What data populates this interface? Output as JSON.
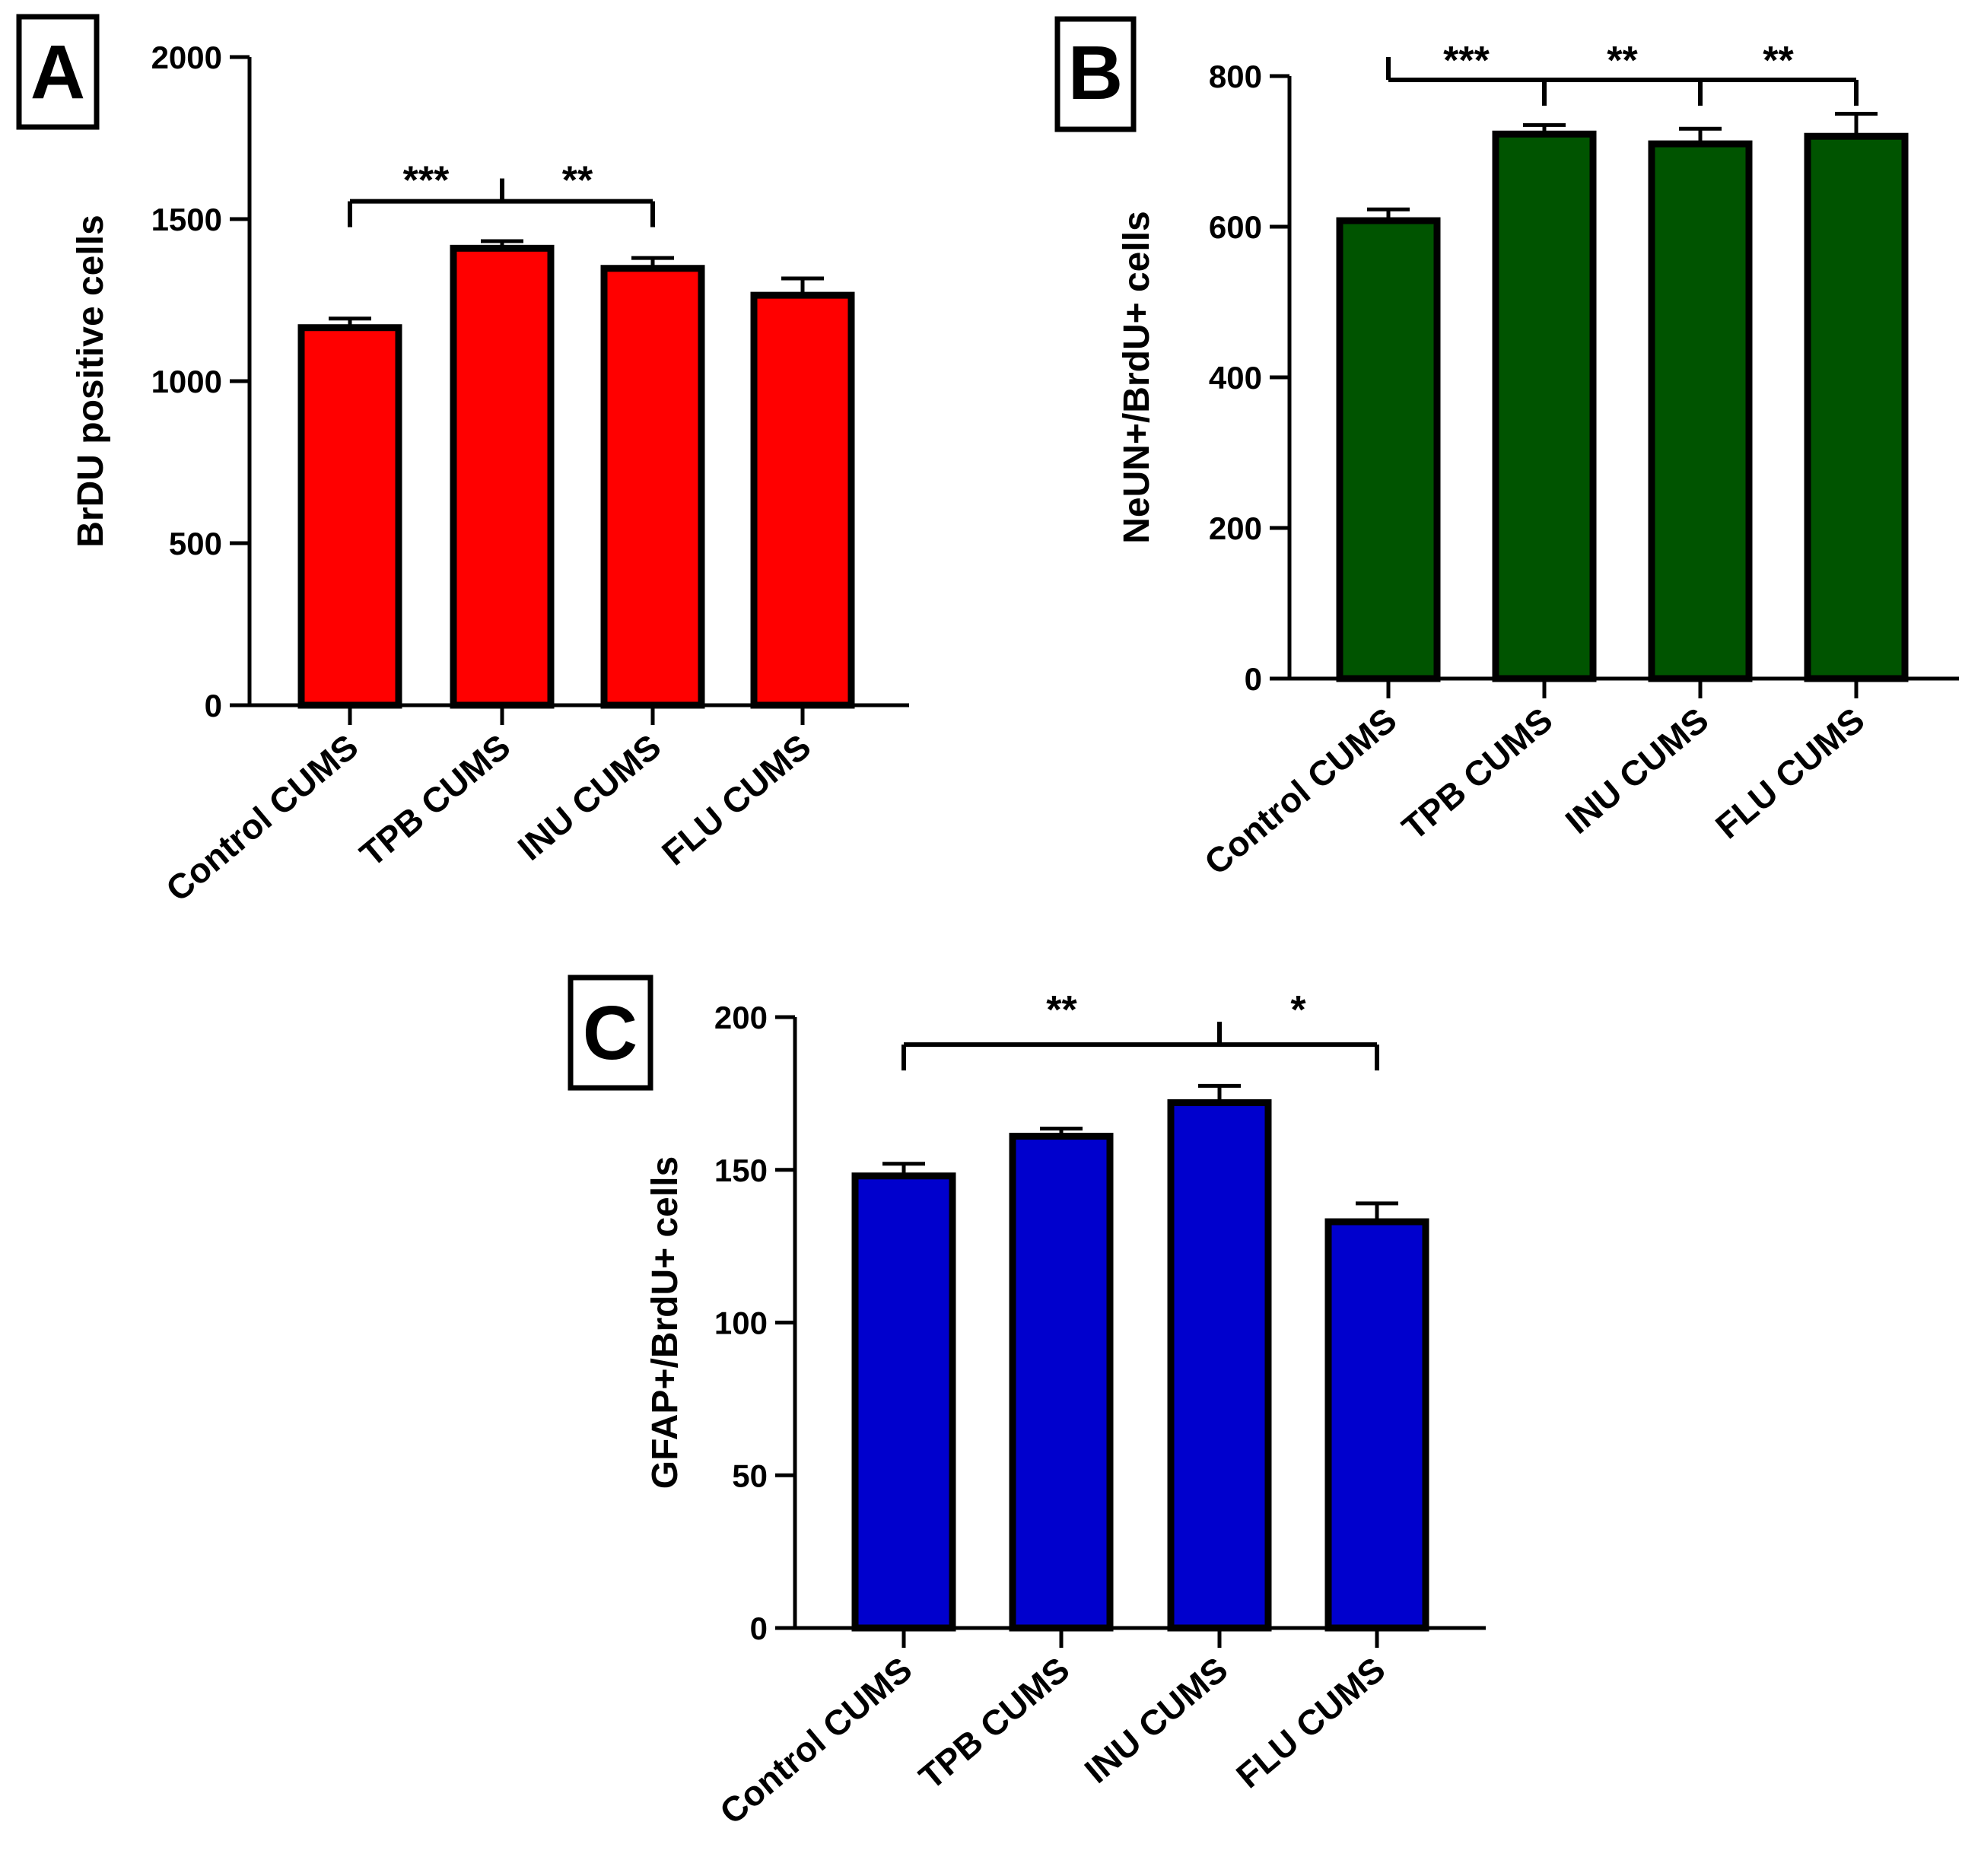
{
  "chart_data": [
    {
      "type": "bar",
      "panel_label": "A",
      "ylabel": "BrDU positive cells",
      "categories": [
        "Control CUMS",
        "TPB CUMS",
        "INU CUMS",
        "FLU CUMS"
      ],
      "values": [
        1165,
        1410,
        1348,
        1265
      ],
      "errors": [
        28,
        22,
        32,
        52
      ],
      "ylim": [
        0,
        2000
      ],
      "yticks": [
        0,
        500,
        1000,
        1500,
        2000
      ],
      "color": "#ff0000",
      "significance": {
        "stem": 1,
        "value": 1555,
        "targets": [
          0,
          2
        ],
        "labels": [
          {
            "text": "***",
            "between": [
              0,
              1
            ]
          },
          {
            "text": "**",
            "between": [
              1,
              2
            ]
          }
        ]
      }
    },
    {
      "type": "bar",
      "panel_label": "B",
      "ylabel": "NeUN+/BrdU+ cells",
      "categories": [
        "Control CUMS",
        "TPB CUMS",
        "INU CUMS",
        "FLU CUMS"
      ],
      "values": [
        608,
        723,
        710,
        720
      ],
      "errors": [
        15,
        12,
        20,
        30
      ],
      "ylim": [
        0,
        800
      ],
      "yticks": [
        0,
        200,
        400,
        600,
        800
      ],
      "color": "#005400",
      "significance": {
        "stem": 0,
        "value": 795,
        "targets": [
          1,
          2,
          3
        ],
        "labels": [
          {
            "text": "***",
            "between": [
              0,
              1
            ]
          },
          {
            "text": "**",
            "between": [
              1,
              2
            ]
          },
          {
            "text": "**",
            "between": [
              2,
              3
            ]
          }
        ]
      }
    },
    {
      "type": "bar",
      "panel_label": "C",
      "ylabel": "GFAP+/BrdU+ cells",
      "categories": [
        "Control CUMS",
        "TPB CUMS",
        "INU CUMS",
        "FLU CUMS"
      ],
      "values": [
        148,
        161,
        172,
        133
      ],
      "errors": [
        4,
        2.5,
        5.5,
        6
      ],
      "ylim": [
        0,
        200
      ],
      "yticks": [
        0,
        50,
        100,
        150,
        200
      ],
      "color": "#0000cd",
      "significance": {
        "stem": 2,
        "value": 191,
        "targets": [
          0,
          3
        ],
        "labels": [
          {
            "text": "**",
            "between": [
              0,
              2
            ]
          },
          {
            "text": "*",
            "between": [
              2,
              3
            ]
          }
        ]
      }
    }
  ]
}
